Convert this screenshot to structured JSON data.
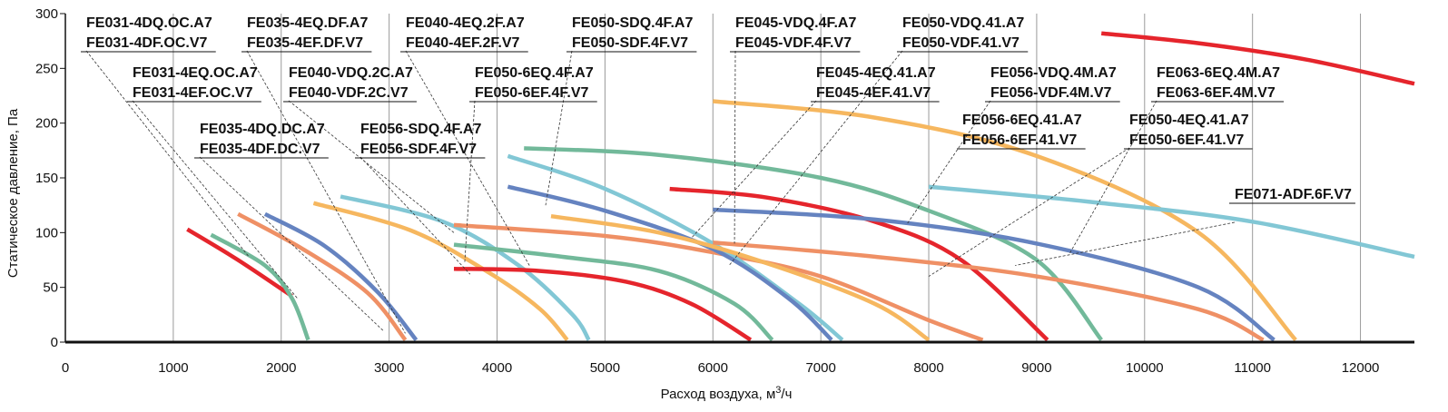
{
  "chart_data": {
    "type": "line",
    "title": "",
    "xlabel_main": "Расход воздуха, м",
    "xlabel_sup": "3",
    "xlabel_tail": "/ч",
    "ylabel": "Статическое давление, Па",
    "xlim": [
      0,
      12500
    ],
    "ylim": [
      0,
      300
    ],
    "x_ticks": [
      0,
      1000,
      2000,
      3000,
      4000,
      5000,
      6000,
      7000,
      8000,
      9000,
      10000,
      11000,
      12000
    ],
    "y_ticks": [
      0,
      50,
      100,
      150,
      200,
      250,
      300
    ],
    "grid": true,
    "colors": {
      "red": "#e5252c",
      "green": "#72b99a",
      "orange": "#ef9065",
      "blue": "#6583c0",
      "yellow": "#f6b75f",
      "cyan": "#82c7d5",
      "leader": "#333333",
      "grid": "#9a9a9a"
    },
    "curves": [
      {
        "color": "red",
        "points": [
          [
            1130,
            103
          ],
          [
            1600,
            75
          ],
          [
            2100,
            42
          ]
        ]
      },
      {
        "color": "green",
        "points": [
          [
            1350,
            98
          ],
          [
            1850,
            70
          ],
          [
            2100,
            40
          ],
          [
            2250,
            2
          ]
        ]
      },
      {
        "color": "orange",
        "points": [
          [
            1600,
            117
          ],
          [
            2200,
            85
          ],
          [
            2800,
            45
          ],
          [
            3150,
            2
          ]
        ]
      },
      {
        "color": "blue",
        "points": [
          [
            1850,
            117
          ],
          [
            2400,
            88
          ],
          [
            2900,
            45
          ],
          [
            3250,
            2
          ]
        ]
      },
      {
        "color": "yellow",
        "points": [
          [
            2300,
            127
          ],
          [
            3200,
            102
          ],
          [
            3900,
            65
          ],
          [
            4400,
            30
          ],
          [
            4650,
            2
          ]
        ]
      },
      {
        "color": "cyan",
        "points": [
          [
            2550,
            133
          ],
          [
            3500,
            110
          ],
          [
            4200,
            70
          ],
          [
            4700,
            25
          ],
          [
            4850,
            2
          ]
        ]
      },
      {
        "color": "red",
        "points": [
          [
            3600,
            67
          ],
          [
            4400,
            65
          ],
          [
            5200,
            55
          ],
          [
            5800,
            35
          ],
          [
            6350,
            2
          ]
        ]
      },
      {
        "color": "green",
        "points": [
          [
            3600,
            89
          ],
          [
            4600,
            78
          ],
          [
            5500,
            65
          ],
          [
            6200,
            35
          ],
          [
            6550,
            2
          ]
        ]
      },
      {
        "color": "orange",
        "points": [
          [
            3600,
            107
          ],
          [
            5000,
            97
          ],
          [
            6000,
            82
          ],
          [
            7000,
            60
          ],
          [
            8000,
            20
          ],
          [
            8500,
            2
          ]
        ]
      },
      {
        "color": "cyan",
        "points": [
          [
            4100,
            170
          ],
          [
            5000,
            140
          ],
          [
            6000,
            90
          ],
          [
            6800,
            35
          ],
          [
            7200,
            2
          ]
        ]
      },
      {
        "color": "blue",
        "points": [
          [
            4100,
            142
          ],
          [
            5000,
            120
          ],
          [
            6000,
            85
          ],
          [
            6700,
            40
          ],
          [
            7100,
            2
          ]
        ]
      },
      {
        "color": "yellow",
        "points": [
          [
            4500,
            115
          ],
          [
            5500,
            100
          ],
          [
            6500,
            72
          ],
          [
            7500,
            35
          ],
          [
            8000,
            2
          ]
        ]
      },
      {
        "color": "green",
        "points": [
          [
            4250,
            177
          ],
          [
            5500,
            171
          ],
          [
            7000,
            150
          ],
          [
            8000,
            120
          ],
          [
            9000,
            75
          ],
          [
            9600,
            2
          ]
        ]
      },
      {
        "color": "red",
        "points": [
          [
            5600,
            140
          ],
          [
            6500,
            132
          ],
          [
            7500,
            110
          ],
          [
            8300,
            75
          ],
          [
            9100,
            2
          ]
        ]
      },
      {
        "color": "blue",
        "points": [
          [
            6000,
            121
          ],
          [
            7500,
            112
          ],
          [
            9000,
            90
          ],
          [
            10500,
            50
          ],
          [
            11200,
            2
          ]
        ]
      },
      {
        "color": "orange",
        "points": [
          [
            6000,
            91
          ],
          [
            7500,
            78
          ],
          [
            9000,
            60
          ],
          [
            10500,
            30
          ],
          [
            11100,
            2
          ]
        ]
      },
      {
        "color": "yellow",
        "points": [
          [
            6000,
            220
          ],
          [
            7500,
            205
          ],
          [
            9000,
            170
          ],
          [
            10500,
            100
          ],
          [
            11400,
            2
          ]
        ]
      },
      {
        "color": "cyan",
        "points": [
          [
            8000,
            142
          ],
          [
            9500,
            128
          ],
          [
            11000,
            110
          ],
          [
            12500,
            78
          ]
        ]
      },
      {
        "color": "red",
        "points": [
          [
            9600,
            282
          ],
          [
            10500,
            273
          ],
          [
            11500,
            258
          ],
          [
            12500,
            236
          ]
        ]
      }
    ],
    "labels": [
      {
        "lines": [
          "FE031-4DQ.OC.A7",
          "FE031-4DF.OC.V7"
        ]
      },
      {
        "lines": [
          "FE035-4EQ.DF.A7",
          "FE035-4EF.DF.V7"
        ]
      },
      {
        "lines": [
          "FE040-4EQ.2F.A7",
          "FE040-4EF.2F.V7"
        ]
      },
      {
        "lines": [
          "FE050-SDQ.4F.A7",
          "FE050-SDF.4F.V7"
        ]
      },
      {
        "lines": [
          "FE045-VDQ.4F.A7",
          "FE045-VDF.4F.V7"
        ]
      },
      {
        "lines": [
          "FE050-VDQ.41.A7",
          "FE050-VDF.41.V7"
        ]
      },
      {
        "lines": [
          "FE031-4EQ.OC.A7",
          "FE031-4EF.OC.V7"
        ]
      },
      {
        "lines": [
          "FE040-VDQ.2C.A7",
          "FE040-VDF.2C.V7"
        ]
      },
      {
        "lines": [
          "FE050-6EQ.4F.A7",
          "FE050-6EF.4F.V7"
        ]
      },
      {
        "lines": [
          "FE045-4EQ.41.A7",
          "FE045-4EF.41.V7"
        ]
      },
      {
        "lines": [
          "FE056-VDQ.4M.A7",
          "FE056-VDF.4M.V7"
        ]
      },
      {
        "lines": [
          "FE063-6EQ.4M.A7",
          "FE063-6EF.4M.V7"
        ]
      },
      {
        "lines": [
          "FE035-4DQ.DC.A7",
          "FE035-4DF.DC.V7"
        ]
      },
      {
        "lines": [
          "FE056-SDQ.4F.A7",
          "FE056-SDF.4F.V7"
        ]
      },
      {
        "lines": [
          "FE056-6EQ.41.A7",
          "FE056-6EF.41.V7"
        ]
      },
      {
        "lines": [
          "FE050-4EQ.41.A7",
          "FE050-6EF.41.V7"
        ]
      },
      {
        "lines": [
          "FE071-ADF.6F.V7"
        ]
      }
    ]
  }
}
